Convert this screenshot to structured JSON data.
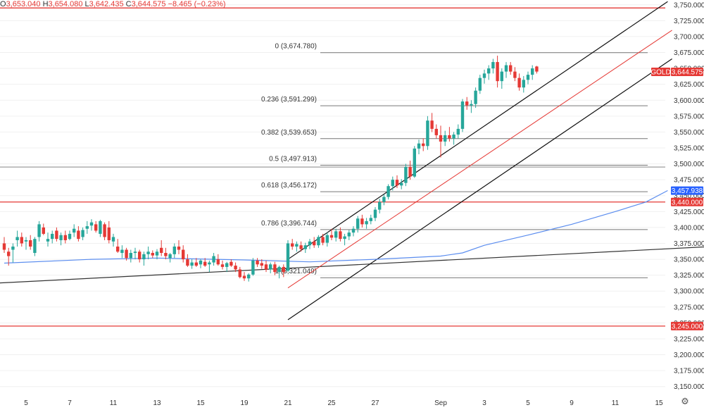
{
  "header": {
    "open_label": "O",
    "open": "3,653.040",
    "high_label": "H",
    "high": "3,654.080",
    "low_label": "L",
    "low": "3,642.435",
    "close_label": "C",
    "close": "3,644.575",
    "change": "−8.465 (−0.23%)"
  },
  "chart_data": {
    "type": "candlestick",
    "symbol": "GOLD",
    "ylim": [
      3137.5,
      3757.5
    ],
    "y_ticks": [
      3750,
      3725,
      3700,
      3675,
      3650,
      3625,
      3600,
      3575,
      3550,
      3525,
      3500,
      3475,
      3450,
      3425,
      3400,
      3375,
      3350,
      3325,
      3300,
      3275,
      3250,
      3225,
      3200,
      3175,
      3150
    ],
    "y_tick_labels": [
      "3,750.000",
      "3,725.000",
      "3,700.000",
      "3,675.000",
      "3,650.000",
      "3,625.000",
      "3,600.000",
      "3,575.000",
      "3,550.000",
      "3,525.000",
      "3,500.000",
      "3,475.000",
      "3,450.000",
      "3,425.000",
      "3,400.000",
      "3,375.000",
      "3,350.000",
      "3,325.000",
      "3,300.000",
      "3,275.000",
      "3,250.000",
      "3,225.000",
      "3,200.000",
      "3,175.000",
      "3,150.000"
    ],
    "x_ticks": [
      {
        "label": "5",
        "bar": 5
      },
      {
        "label": "7",
        "bar": 15
      },
      {
        "label": "11",
        "bar": 25
      },
      {
        "label": "13",
        "bar": 35
      },
      {
        "label": "15",
        "bar": 45
      },
      {
        "label": "19",
        "bar": 55
      },
      {
        "label": "21",
        "bar": 65
      },
      {
        "label": "25",
        "bar": 75
      },
      {
        "label": "27",
        "bar": 85
      },
      {
        "label": "Sep",
        "bar": 100
      },
      {
        "label": "3",
        "bar": 110
      },
      {
        "label": "5",
        "bar": 120
      },
      {
        "label": "9",
        "bar": 130
      },
      {
        "label": "11",
        "bar": 140
      },
      {
        "label": "15",
        "bar": 150
      }
    ],
    "candles": [
      [
        3375,
        3385,
        3360,
        3365
      ],
      [
        3362,
        3368,
        3340,
        3355
      ],
      [
        3365,
        3375,
        3345,
        3370
      ],
      [
        3380,
        3395,
        3370,
        3385
      ],
      [
        3385,
        3392,
        3370,
        3375
      ],
      [
        3378,
        3385,
        3365,
        3380
      ],
      [
        3380,
        3388,
        3365,
        3370
      ],
      [
        3360,
        3385,
        3355,
        3382
      ],
      [
        3385,
        3410,
        3378,
        3405
      ],
      [
        3400,
        3406,
        3388,
        3390
      ],
      [
        3378,
        3392,
        3370,
        3382
      ],
      [
        3382,
        3395,
        3375,
        3390
      ],
      [
        3395,
        3400,
        3378,
        3382
      ],
      [
        3380,
        3392,
        3372,
        3388
      ],
      [
        3388,
        3395,
        3375,
        3380
      ],
      [
        3382,
        3395,
        3380,
        3390
      ],
      [
        3392,
        3405,
        3385,
        3398
      ],
      [
        3395,
        3402,
        3378,
        3382
      ],
      [
        3385,
        3400,
        3380,
        3396
      ],
      [
        3398,
        3410,
        3390,
        3402
      ],
      [
        3403,
        3413,
        3395,
        3408
      ],
      [
        3405,
        3410,
        3392,
        3395
      ],
      [
        3390,
        3412,
        3385,
        3410
      ],
      [
        3405,
        3408,
        3380,
        3385
      ],
      [
        3400,
        3410,
        3375,
        3380
      ],
      [
        3378,
        3390,
        3370,
        3385
      ],
      [
        3370,
        3382,
        3360,
        3362
      ],
      [
        3360,
        3372,
        3352,
        3365
      ],
      [
        3365,
        3368,
        3348,
        3352
      ],
      [
        3352,
        3365,
        3345,
        3360
      ],
      [
        3360,
        3368,
        3350,
        3362
      ],
      [
        3362,
        3365,
        3345,
        3350
      ],
      [
        3350,
        3362,
        3340,
        3358
      ],
      [
        3358,
        3370,
        3350,
        3362
      ],
      [
        3360,
        3364,
        3352,
        3356
      ],
      [
        3356,
        3366,
        3350,
        3362
      ],
      [
        3368,
        3380,
        3355,
        3360
      ],
      [
        3360,
        3368,
        3350,
        3355
      ],
      [
        3352,
        3360,
        3345,
        3358
      ],
      [
        3358,
        3375,
        3352,
        3370
      ],
      [
        3370,
        3380,
        3358,
        3365
      ],
      [
        3365,
        3372,
        3345,
        3350
      ],
      [
        3350,
        3358,
        3338,
        3340
      ],
      [
        3340,
        3350,
        3335,
        3345
      ],
      [
        3345,
        3352,
        3338,
        3340
      ],
      [
        3342,
        3350,
        3336,
        3348
      ],
      [
        3346,
        3352,
        3338,
        3340
      ],
      [
        3342,
        3348,
        3330,
        3345
      ],
      [
        3345,
        3360,
        3340,
        3355
      ],
      [
        3350,
        3358,
        3340,
        3342
      ],
      [
        3342,
        3348,
        3334,
        3338
      ],
      [
        3338,
        3346,
        3330,
        3344
      ],
      [
        3346,
        3350,
        3338,
        3340
      ],
      [
        3340,
        3345,
        3330,
        3334
      ],
      [
        3334,
        3338,
        3320,
        3322
      ],
      [
        3324,
        3330,
        3316,
        3320
      ],
      [
        3320,
        3328,
        3315,
        3326
      ],
      [
        3326,
        3352,
        3324,
        3348
      ],
      [
        3348,
        3352,
        3338,
        3342
      ],
      [
        3344,
        3350,
        3335,
        3340
      ],
      [
        3342,
        3348,
        3330,
        3334
      ],
      [
        3334,
        3345,
        3328,
        3342
      ],
      [
        3342,
        3346,
        3325,
        3330
      ],
      [
        3330,
        3340,
        3320,
        3338
      ],
      [
        3338,
        3342,
        3322,
        3330
      ],
      [
        3332,
        3380,
        3330,
        3375
      ],
      [
        3375,
        3382,
        3365,
        3370
      ],
      [
        3370,
        3378,
        3362,
        3374
      ],
      [
        3372,
        3378,
        3362,
        3366
      ],
      [
        3366,
        3376,
        3360,
        3372
      ],
      [
        3372,
        3382,
        3366,
        3378
      ],
      [
        3378,
        3385,
        3368,
        3372
      ],
      [
        3372,
        3388,
        3368,
        3385
      ],
      [
        3385,
        3390,
        3372,
        3376
      ],
      [
        3376,
        3392,
        3370,
        3388
      ],
      [
        3388,
        3398,
        3380,
        3384
      ],
      [
        3384,
        3398,
        3378,
        3394
      ],
      [
        3394,
        3400,
        3378,
        3382
      ],
      [
        3382,
        3390,
        3372,
        3386
      ],
      [
        3386,
        3396,
        3380,
        3392
      ],
      [
        3392,
        3402,
        3386,
        3398
      ],
      [
        3398,
        3418,
        3392,
        3414
      ],
      [
        3414,
        3420,
        3400,
        3405
      ],
      [
        3405,
        3415,
        3398,
        3410
      ],
      [
        3410,
        3420,
        3405,
        3415
      ],
      [
        3415,
        3432,
        3410,
        3428
      ],
      [
        3428,
        3445,
        3422,
        3440
      ],
      [
        3440,
        3452,
        3435,
        3448
      ],
      [
        3448,
        3468,
        3444,
        3465
      ],
      [
        3465,
        3480,
        3458,
        3475
      ],
      [
        3475,
        3482,
        3462,
        3466
      ],
      [
        3466,
        3476,
        3460,
        3470
      ],
      [
        3470,
        3500,
        3465,
        3495
      ],
      [
        3495,
        3505,
        3475,
        3480
      ],
      [
        3480,
        3528,
        3478,
        3524
      ],
      [
        3524,
        3538,
        3515,
        3532
      ],
      [
        3532,
        3540,
        3520,
        3528
      ],
      [
        3528,
        3575,
        3522,
        3568
      ],
      [
        3568,
        3580,
        3550,
        3555
      ],
      [
        3555,
        3562,
        3540,
        3545
      ],
      [
        3545,
        3560,
        3510,
        3535
      ],
      [
        3535,
        3552,
        3528,
        3545
      ],
      [
        3545,
        3558,
        3535,
        3540
      ],
      [
        3540,
        3550,
        3530,
        3546
      ],
      [
        3546,
        3562,
        3540,
        3555
      ],
      [
        3555,
        3602,
        3550,
        3598
      ],
      [
        3598,
        3605,
        3585,
        3592
      ],
      [
        3592,
        3600,
        3580,
        3594
      ],
      [
        3594,
        3620,
        3588,
        3615
      ],
      [
        3615,
        3640,
        3610,
        3635
      ],
      [
        3635,
        3648,
        3626,
        3642
      ],
      [
        3642,
        3655,
        3632,
        3650
      ],
      [
        3650,
        3665,
        3642,
        3660
      ],
      [
        3660,
        3670,
        3620,
        3630
      ],
      [
        3630,
        3650,
        3618,
        3645
      ],
      [
        3645,
        3660,
        3635,
        3655
      ],
      [
        3655,
        3660,
        3640,
        3645
      ],
      [
        3645,
        3652,
        3630,
        3635
      ],
      [
        3635,
        3642,
        3615,
        3620
      ],
      [
        3620,
        3638,
        3612,
        3632
      ],
      [
        3632,
        3645,
        3625,
        3640
      ],
      [
        3640,
        3655,
        3632,
        3650
      ],
      [
        3653,
        3654,
        3642,
        3645
      ]
    ],
    "sma": [
      [
        0,
        3344
      ],
      [
        20,
        3350
      ],
      [
        35,
        3352
      ],
      [
        55,
        3349
      ],
      [
        70,
        3346
      ],
      [
        85,
        3350
      ],
      [
        100,
        3355
      ],
      [
        105,
        3360
      ],
      [
        110,
        3372
      ],
      [
        120,
        3388
      ],
      [
        130,
        3405
      ],
      [
        140,
        3425
      ],
      [
        147,
        3440
      ],
      [
        152,
        3458
      ]
    ],
    "fib_levels": [
      {
        "ratio": "0",
        "value": 3674.78,
        "label": "0 (3,674.780)"
      },
      {
        "ratio": "0.236",
        "value": 3591.299,
        "label": "0.236 (3,591.299)"
      },
      {
        "ratio": "0.382",
        "value": 3539.653,
        "label": "0.382 (3,539.653)"
      },
      {
        "ratio": "0.5",
        "value": 3497.913,
        "label": "0.5 (3,497.913)"
      },
      {
        "ratio": "0.618",
        "value": 3456.172,
        "label": "0.618 (3,456.172)"
      },
      {
        "ratio": "0.786",
        "value": 3396.744,
        "label": "0.786 (3,396.744)"
      },
      {
        "ratio": "1",
        "value": 3321.049,
        "label": "1 (3,321.049)"
      }
    ],
    "horizontal_lines": [
      {
        "value": 3745,
        "color": "#e53935"
      },
      {
        "value": 3495,
        "color": "#9e9e9e"
      },
      {
        "value": 3440,
        "color": "#e53935"
      },
      {
        "value": 3245,
        "color": "#e53935"
      }
    ],
    "trendlines": [
      {
        "name": "support",
        "color": "#333333",
        "from": [
          -66,
          3290
        ],
        "to": [
          162,
          3370
        ]
      },
      {
        "name": "channel-upper",
        "color": "#111111",
        "from": [
          65,
          3350
        ],
        "to": [
          152,
          3755
        ]
      },
      {
        "name": "channel-middle",
        "color": "#e53935",
        "from": [
          65,
          3305
        ],
        "to": [
          153,
          3710
        ]
      },
      {
        "name": "channel-lower",
        "color": "#111111",
        "from": [
          65,
          3255
        ],
        "to": [
          153,
          3665
        ]
      }
    ],
    "price_badges": [
      {
        "text": "GOLD",
        "value": 3644.575,
        "color": "#e53935",
        "label_only": true
      },
      {
        "text": "3,644.575",
        "value": 3644.575,
        "color": "#e53935"
      },
      {
        "text": "3,457.938",
        "value": 3457.938,
        "color": "#2962ff"
      },
      {
        "text": "3,440.000",
        "value": 3440.0,
        "color": "#e53935"
      },
      {
        "text": "3,245.000",
        "value": 3245.0,
        "color": "#e53935"
      }
    ],
    "colors": {
      "up": "#26a69a",
      "down": "#e53935",
      "sma": "#5b8def",
      "grid": "#f0f0f0"
    }
  },
  "settings_icon": "gear-icon"
}
